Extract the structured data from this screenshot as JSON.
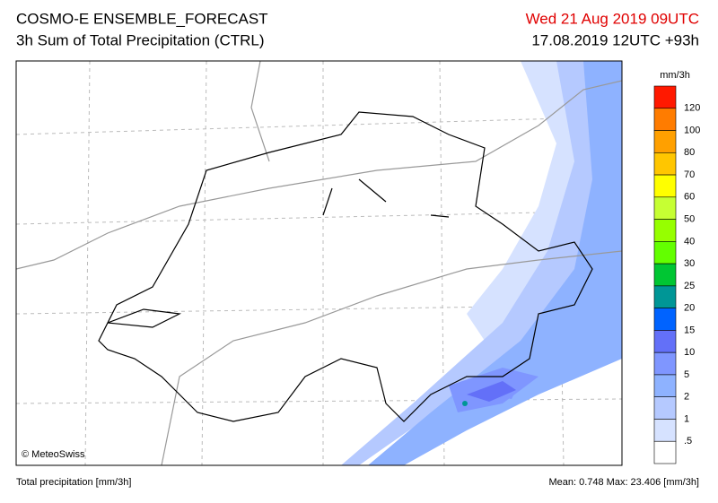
{
  "header": {
    "title": "COSMO-E ENSEMBLE_FORECAST",
    "subtitle": "3h Sum of Total Precipitation (CTRL)",
    "valid_time": "Wed 21 Aug 2019 09UTC",
    "run_time": "17.08.2019 12UTC +93h"
  },
  "map": {
    "credit": "© MeteoSwiss"
  },
  "legend": {
    "unit": "mm/3h",
    "labels": [
      "120",
      "100",
      "80",
      "70",
      "60",
      "50",
      "40",
      "30",
      "25",
      "20",
      "15",
      "10",
      "5",
      "2",
      "1",
      ".5"
    ],
    "colors": [
      "#ff1900",
      "#ff7c00",
      "#ffa000",
      "#ffc600",
      "#ffff00",
      "#c6ff33",
      "#96ff00",
      "#63ff00",
      "#00c633",
      "#009696",
      "#0063ff",
      "#6370f8",
      "#7f96ff",
      "#8eb2ff",
      "#b5c9ff",
      "#d6e2ff",
      "#ffffff"
    ]
  },
  "footer": {
    "left": "Total precipitation [mm/3h]",
    "right": "Mean:  0.748 Max: 23.406 [mm/3h]"
  }
}
